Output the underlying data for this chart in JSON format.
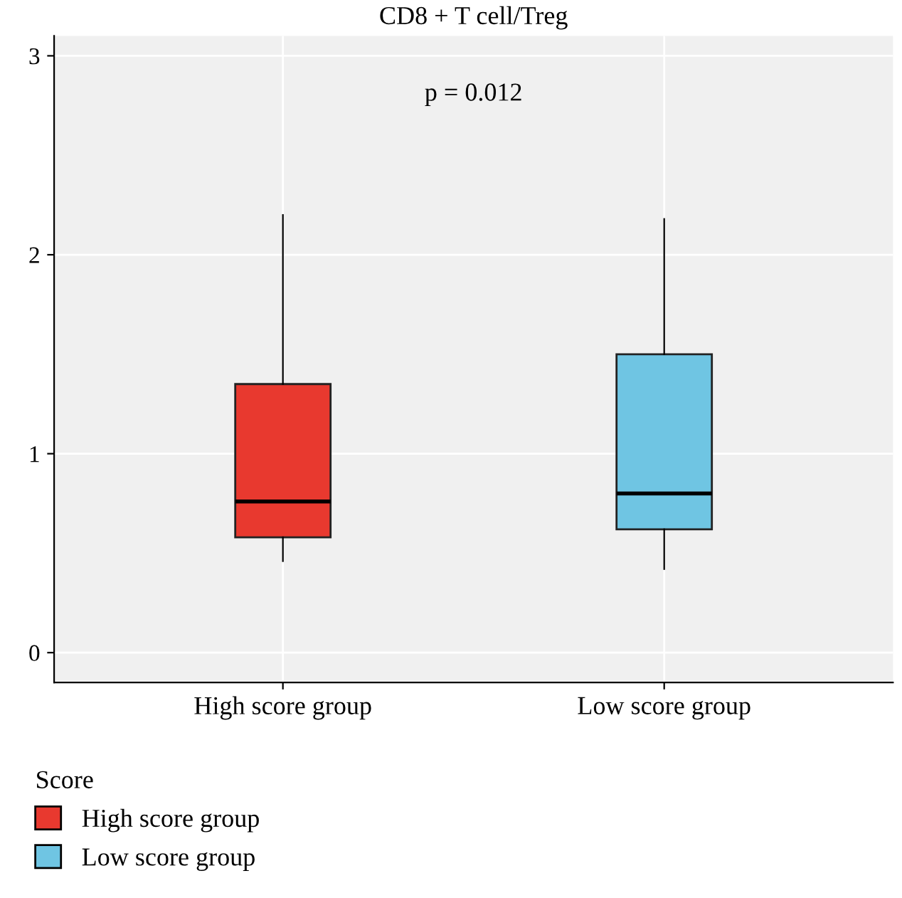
{
  "chart_data": {
    "type": "box",
    "title": "CD8 + T cell/Treg",
    "categories": [
      "High score group",
      "Low score group"
    ],
    "series": [
      {
        "name": "High score group",
        "color": "#e8392f",
        "boxes": [
          {
            "low": 0.46,
            "q1": 0.58,
            "median": 0.76,
            "q3": 1.35,
            "high": 2.2
          },
          null
        ]
      },
      {
        "name": "Low score group",
        "color": "#6fc5e3",
        "boxes": [
          null,
          {
            "low": 0.42,
            "q1": 0.62,
            "median": 0.8,
            "q3": 1.5,
            "high": 2.18
          }
        ]
      }
    ],
    "legend_title": "Score",
    "annotations": [
      "p = 0.012"
    ],
    "ylim": [
      -0.15,
      3.1
    ],
    "yticks": [
      0,
      1,
      2,
      3
    ],
    "grid": true,
    "legend": "bottom"
  }
}
